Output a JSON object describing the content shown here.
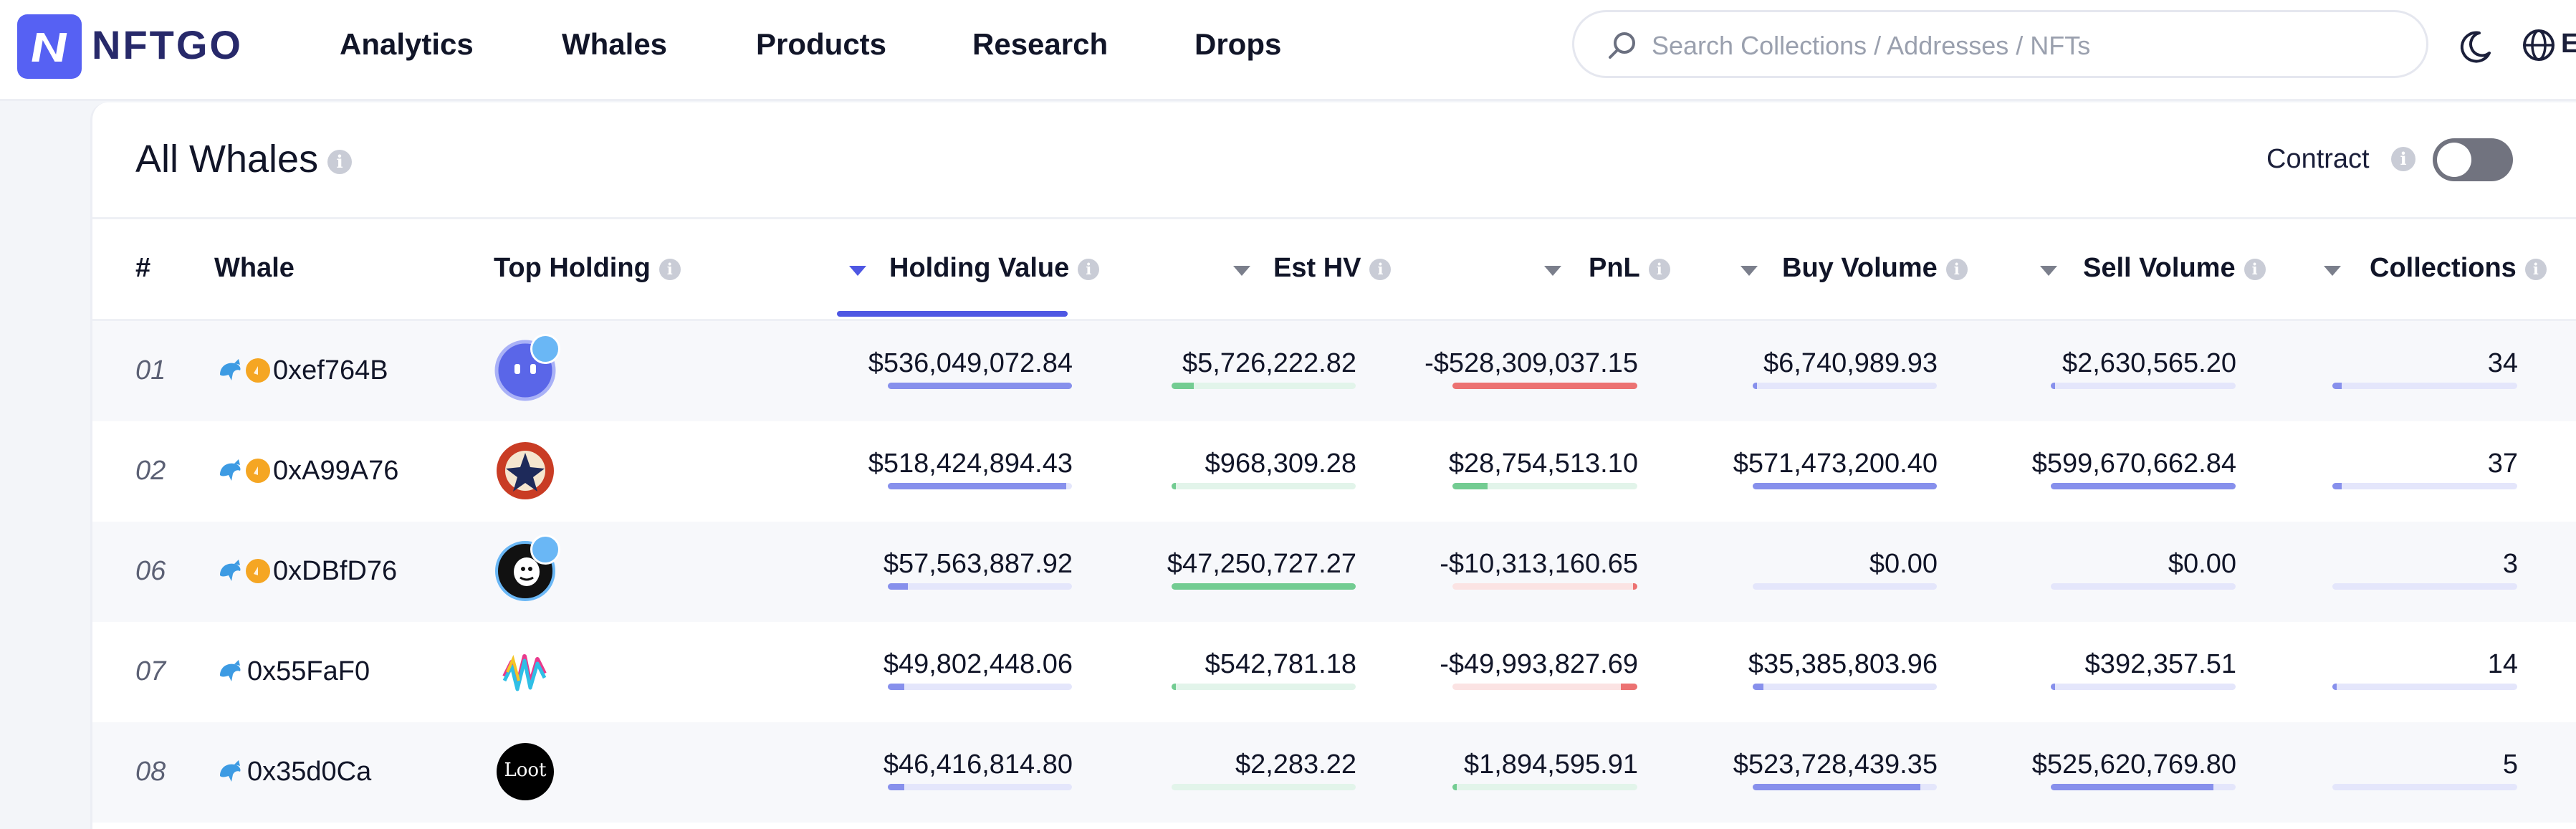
{
  "brand": {
    "name": "NFTGO",
    "accent": "#5661f3"
  },
  "nav": {
    "items": [
      "Analytics",
      "Whales",
      "Products",
      "Research",
      "Drops"
    ],
    "search_placeholder": "Search Collections / Addresses / NFTs",
    "language_fragment": "E"
  },
  "panel": {
    "title": "All Whales",
    "contract_label": "Contract",
    "contract_enabled": false
  },
  "columns": [
    "#",
    "Whale",
    "Top Holding",
    "Holding Value",
    "Est HV",
    "PnL",
    "Buy Volume",
    "Sell Volume",
    "Collections"
  ],
  "sort": {
    "column": "Holding Value",
    "direction": "descending"
  },
  "rows": [
    {
      "rank": "01",
      "address": "0xef764B",
      "verified": true,
      "top_holding": "blue-ghost-avatar",
      "holding_value": "$536,049,072.84",
      "est_hv": "$5,726,222.82",
      "pnl": "-$528,309,037.15",
      "buy_volume": "$6,740,989.93",
      "sell_volume": "$2,630,565.20",
      "collections": "34",
      "levels": {
        "holding_value": 1.0,
        "est_hv": 0.12,
        "pnl": 1.0,
        "buy_volume": 0.02,
        "sell_volume": 0.01,
        "collections": 0.05
      },
      "pnl_positive": false
    },
    {
      "rank": "02",
      "address": "0xA99A76",
      "verified": true,
      "top_holding": "red-emblem-avatar",
      "holding_value": "$518,424,894.43",
      "est_hv": "$968,309.28",
      "pnl": "$28,754,513.10",
      "buy_volume": "$571,473,200.40",
      "sell_volume": "$599,670,662.84",
      "collections": "37",
      "levels": {
        "holding_value": 0.97,
        "est_hv": 0.02,
        "pnl": 0.19,
        "buy_volume": 1.0,
        "sell_volume": 1.0,
        "collections": 0.05
      },
      "pnl_positive": true
    },
    {
      "rank": "06",
      "address": "0xDBfD76",
      "verified": true,
      "top_holding": "bored-ape-avatar",
      "holding_value": "$57,563,887.92",
      "est_hv": "$47,250,727.27",
      "pnl": "-$10,313,160.65",
      "buy_volume": "$0.00",
      "sell_volume": "$0.00",
      "collections": "3",
      "levels": {
        "holding_value": 0.11,
        "est_hv": 1.0,
        "pnl": 0.02,
        "buy_volume": 0.0,
        "sell_volume": 0.0,
        "collections": 0.0
      },
      "pnl_positive": false
    },
    {
      "rank": "07",
      "address": "0x55FaF0",
      "verified": false,
      "top_holding": "rainbow-wave-avatar",
      "holding_value": "$49,802,448.06",
      "est_hv": "$542,781.18",
      "pnl": "-$49,993,827.69",
      "buy_volume": "$35,385,803.96",
      "sell_volume": "$392,357.51",
      "collections": "14",
      "levels": {
        "holding_value": 0.09,
        "est_hv": 0.01,
        "pnl": 0.09,
        "buy_volume": 0.06,
        "sell_volume": 0.01,
        "collections": 0.02
      },
      "pnl_positive": false
    },
    {
      "rank": "08",
      "address": "0x35d0Ca",
      "verified": false,
      "top_holding": "loot-avatar",
      "top_holding_text": "Loot",
      "holding_value": "$46,416,814.80",
      "est_hv": "$2,283.22",
      "pnl": "$1,894,595.91",
      "buy_volume": "$523,728,439.35",
      "sell_volume": "$525,620,769.80",
      "collections": "5",
      "levels": {
        "holding_value": 0.09,
        "est_hv": 0.0,
        "pnl": 0.01,
        "buy_volume": 0.91,
        "sell_volume": 0.88,
        "collections": 0.0
      },
      "pnl_positive": true
    }
  ],
  "colors": {
    "bar_blue": "#8790ec",
    "bar_green": "#73cc92",
    "bar_red": "#ec7272",
    "sort_active": "#4e57e3"
  }
}
